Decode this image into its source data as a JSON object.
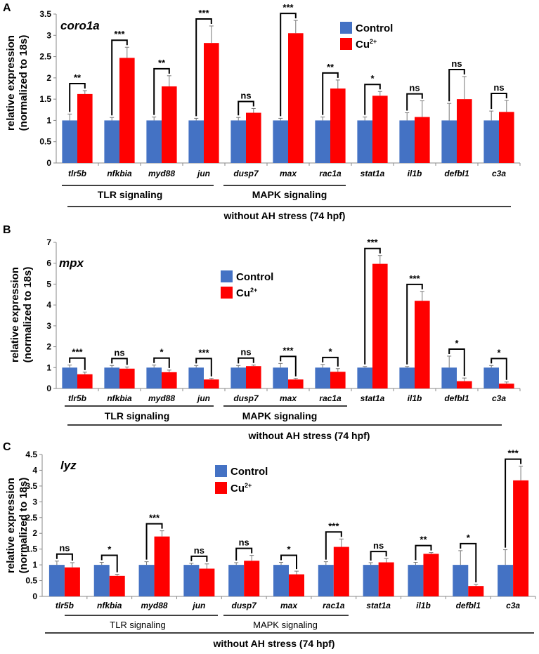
{
  "colors": {
    "control": "#4472C4",
    "treatment": "#FF0000"
  },
  "categories": [
    "tlr5b",
    "nfkbia",
    "myd88",
    "jun",
    "dusp7",
    "max",
    "rac1a",
    "stat1a",
    "il1b",
    "defbl1",
    "c3a"
  ],
  "legend": {
    "control": "Control",
    "treatment_base": "Cu",
    "treatment_sup": "2+"
  },
  "groups": {
    "tlr": "TLR signaling",
    "mapk": "MAPK signaling",
    "stress": "without AH stress (74 hpf)"
  },
  "chart_data": [
    {
      "type": "bar",
      "panel_label": "A",
      "gene": "coro1a",
      "ylabel_line1": "relative expression",
      "ylabel_line2": "(normalized to 18s)",
      "ylim": [
        0,
        3.5
      ],
      "yticks": [
        "0",
        "0.5",
        "1",
        "1.5",
        "2",
        "2.5",
        "3",
        "3.5"
      ],
      "categories": [
        "tlr5b",
        "nfkbia",
        "myd88",
        "jun",
        "dusp7",
        "max",
        "rac1a",
        "stat1a",
        "il1b",
        "defbl1",
        "c3a"
      ],
      "series": [
        {
          "name": "Control",
          "values": [
            1,
            1,
            1,
            1,
            1,
            1,
            1,
            1,
            1,
            1,
            1
          ],
          "errors": [
            0.15,
            0.07,
            0.08,
            0.05,
            0.07,
            0.05,
            0.08,
            0.08,
            0.18,
            0.4,
            0.22
          ]
        },
        {
          "name": "Cu2+",
          "values": [
            1.62,
            2.47,
            1.8,
            2.82,
            1.18,
            3.05,
            1.75,
            1.58,
            1.08,
            1.5,
            1.2
          ],
          "errors": [
            0.08,
            0.25,
            0.25,
            0.4,
            0.1,
            0.3,
            0.2,
            0.1,
            0.38,
            0.53,
            0.27
          ]
        }
      ],
      "significance": [
        "**",
        "***",
        "**",
        "***",
        "ns",
        "***",
        "**",
        "*",
        "ns",
        "ns",
        "ns"
      ],
      "legend_position": "top-right",
      "grid": false
    },
    {
      "type": "bar",
      "panel_label": "B",
      "gene": "mpx",
      "ylabel_line1": "relative expression",
      "ylabel_line2": "(normalized to 18s)",
      "ylim": [
        0,
        7
      ],
      "yticks": [
        "0",
        "1",
        "2",
        "3",
        "4",
        "5",
        "6",
        "7"
      ],
      "categories": [
        "tlr5b",
        "nfkbia",
        "myd88",
        "jun",
        "dusp7",
        "max",
        "rac1a",
        "stat1a",
        "il1b",
        "defbl1",
        "c3a"
      ],
      "series": [
        {
          "name": "Control",
          "values": [
            1,
            1,
            1,
            1,
            1,
            1,
            1,
            1,
            1,
            1,
            1
          ],
          "errors": [
            0.12,
            0.1,
            0.12,
            0.1,
            0.1,
            0.2,
            0.15,
            0.05,
            0.05,
            0.55,
            0.1
          ]
        },
        {
          "name": "Cu2+",
          "values": [
            0.68,
            0.95,
            0.78,
            0.43,
            1.07,
            0.43,
            0.8,
            5.97,
            4.2,
            0.35,
            0.23
          ],
          "errors": [
            0.1,
            0.08,
            0.1,
            0.05,
            0.05,
            0.05,
            0.15,
            0.4,
            0.45,
            0.15,
            0.08
          ]
        }
      ],
      "significance": [
        "***",
        "ns",
        "*",
        "***",
        "ns",
        "***",
        "*",
        "***",
        "***",
        "*",
        "*"
      ],
      "legend_position": "top-center",
      "grid": false
    },
    {
      "type": "bar",
      "panel_label": "C",
      "gene": "lyz",
      "ylabel_line1": "relative expression",
      "ylabel_line2": "(normalized to 18s)",
      "ylim": [
        0,
        4.5
      ],
      "yticks": [
        "0",
        "0.5",
        "1",
        "1.5",
        "2",
        "2.5",
        "3",
        "3.5",
        "4",
        "4.5"
      ],
      "categories": [
        "tlr5b",
        "nfkbia",
        "myd88",
        "jun",
        "dusp7",
        "max",
        "rac1a",
        "stat1a",
        "il1b",
        "defbl1",
        "c3a"
      ],
      "series": [
        {
          "name": "Control",
          "values": [
            1,
            1,
            1,
            1,
            1,
            1,
            1,
            1,
            1,
            1,
            1
          ],
          "errors": [
            0.12,
            0.08,
            0.1,
            0.05,
            0.07,
            0.08,
            0.1,
            0.07,
            0.08,
            0.45,
            0.48
          ]
        },
        {
          "name": "Cu2+",
          "values": [
            0.92,
            0.65,
            1.9,
            0.88,
            1.13,
            0.7,
            1.57,
            1.08,
            1.35,
            0.33,
            3.68
          ],
          "errors": [
            0.15,
            0.05,
            0.18,
            0.15,
            0.17,
            0.1,
            0.25,
            0.12,
            0.04,
            0.05,
            0.45
          ]
        }
      ],
      "significance": [
        "ns",
        "*",
        "***",
        "ns",
        "ns",
        "*",
        "***",
        "ns",
        "**",
        "*",
        "***"
      ],
      "legend_position": "top-left",
      "grid": false
    }
  ]
}
